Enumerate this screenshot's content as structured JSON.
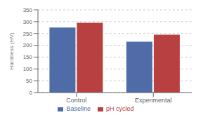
{
  "chart_data": {
    "type": "bar",
    "categories": [
      "Control",
      "Experimental"
    ],
    "series": [
      {
        "name": "Baseline",
        "color": "#4F6CA8",
        "values": [
          275,
          215
        ]
      },
      {
        "name": "pH cycled",
        "color": "#B84040",
        "values": [
          295,
          245
        ]
      }
    ],
    "ylabel": "Hardness (HV)",
    "ylim": [
      0,
      350
    ],
    "yticks": [
      0,
      50,
      100,
      150,
      200,
      250,
      300,
      350
    ],
    "grid": true,
    "legend": "bottom"
  }
}
